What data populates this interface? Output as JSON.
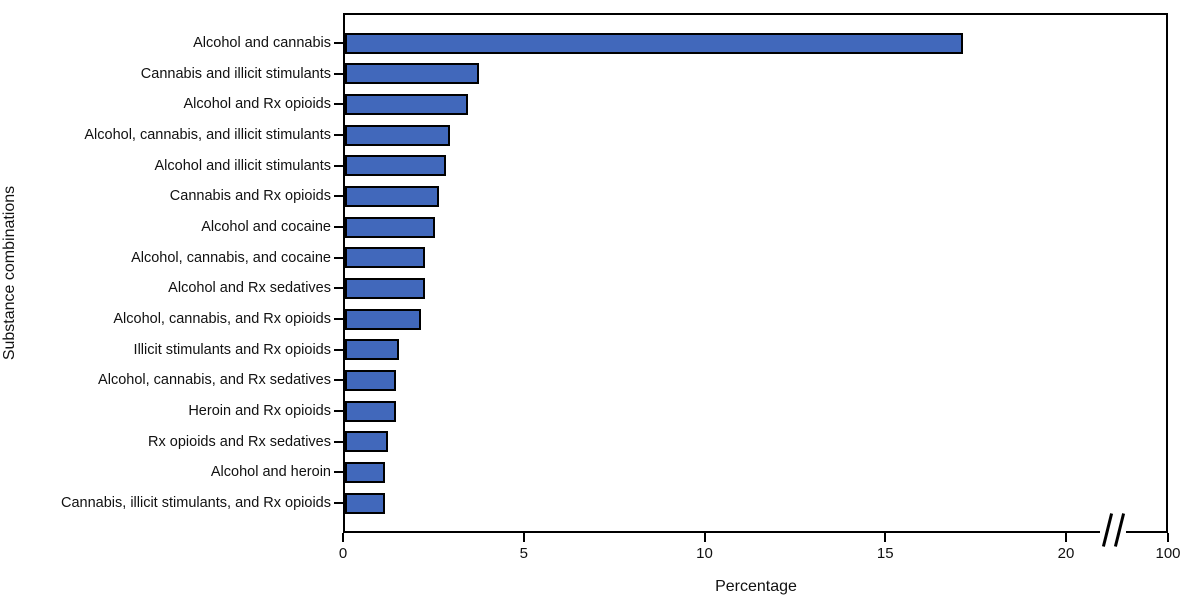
{
  "chart_data": {
    "type": "bar",
    "orientation": "horizontal",
    "title": "",
    "xlabel": "Percentage",
    "ylabel": "Substance combinations",
    "categories": [
      "Alcohol and cannabis",
      "Cannabis and illicit stimulants",
      "Alcohol and Rx opioids",
      "Alcohol, cannabis, and illicit stimulants",
      "Alcohol and illicit stimulants",
      "Cannabis and Rx opioids",
      "Alcohol and cocaine",
      "Alcohol, cannabis, and cocaine",
      "Alcohol and Rx sedatives",
      "Alcohol, cannabis, and Rx opioids",
      "Illicit stimulants and Rx opioids",
      "Alcohol, cannabis, and Rx sedatives",
      "Heroin and Rx opioids",
      "Rx opioids and Rx sedatives",
      "Alcohol and heroin",
      "Cannabis, illicit stimulants, and Rx opioids"
    ],
    "values": [
      17.1,
      3.7,
      3.4,
      2.9,
      2.8,
      2.6,
      2.5,
      2.2,
      2.2,
      2.1,
      1.5,
      1.4,
      1.4,
      1.2,
      1.1,
      1.1
    ],
    "x_tick_labels": [
      "0",
      "5",
      "10",
      "15",
      "20",
      "100"
    ],
    "x_tick_values": [
      0,
      5,
      10,
      15,
      20,
      100
    ],
    "xlim_linear": [
      0,
      20
    ],
    "axis_break_between": [
      20,
      100
    ],
    "grid": "off",
    "legend": "none",
    "colors": {
      "bar_fill": "#4168bb",
      "bar_border": "#000000",
      "axis": "#000000",
      "background": "#ffffff"
    }
  }
}
